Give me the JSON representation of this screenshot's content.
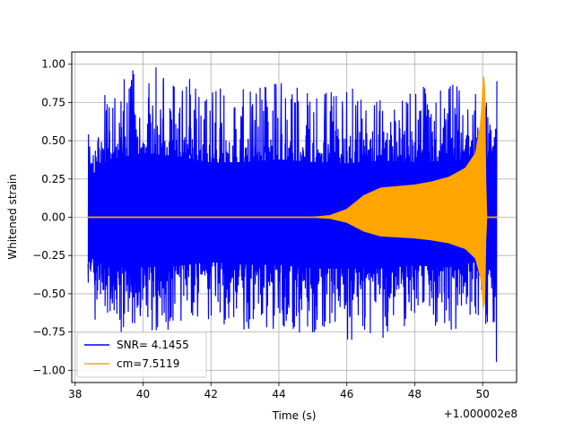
{
  "chart_data": {
    "type": "line",
    "xlabel": "Time (s)",
    "ylabel": "Whitened strain",
    "x_offset_label": "+1.000002e8",
    "xlim": [
      37.9,
      51.0
    ],
    "ylim": [
      -1.08,
      1.08
    ],
    "x_ticks": [
      38,
      40,
      42,
      44,
      46,
      48,
      50
    ],
    "x_tick_labels": [
      "38",
      "40",
      "42",
      "44",
      "46",
      "48",
      "50"
    ],
    "y_ticks": [
      -1.0,
      -0.75,
      -0.5,
      -0.25,
      0.0,
      0.25,
      0.5,
      0.75,
      1.0
    ],
    "y_tick_labels": [
      "−1.00",
      "−0.75",
      "−0.50",
      "−0.25",
      "0.00",
      "0.25",
      "0.50",
      "0.75",
      "1.00"
    ],
    "grid": true,
    "legend_placement": "lower-left",
    "series": [
      {
        "name": "SNR= 4.1455",
        "color": "#0000ff",
        "description": "whitened strain noise",
        "x_range": [
          38.38,
          50.42
        ],
        "amplitude_range": [
          -0.97,
          1.0
        ],
        "envelope_x": [
          38.4,
          39.0,
          40.0,
          41.0,
          42.0,
          43.0,
          44.0,
          45.0,
          46.0,
          47.0,
          48.0,
          49.0,
          50.0,
          50.4
        ],
        "envelope_max": [
          0.62,
          0.9,
          1.0,
          0.95,
          0.85,
          0.86,
          0.9,
          0.86,
          0.84,
          0.88,
          0.86,
          0.88,
          0.92,
          0.97
        ],
        "envelope_min": [
          -0.62,
          -0.78,
          -0.78,
          -0.76,
          -0.7,
          -0.74,
          -0.74,
          -0.8,
          -0.8,
          -0.8,
          -0.75,
          -0.78,
          -0.68,
          -0.97
        ]
      },
      {
        "name": "cm=7.5119",
        "color": "#ffa500",
        "description": "chirp template",
        "envelope_x": [
          38.38,
          45.0,
          45.5,
          46.0,
          46.5,
          47.0,
          47.5,
          48.0,
          48.5,
          49.0,
          49.5,
          49.8,
          49.95,
          50.05,
          50.1,
          50.42
        ],
        "envelope_max": [
          0.0,
          0.0,
          0.01,
          0.05,
          0.14,
          0.19,
          0.2,
          0.21,
          0.23,
          0.26,
          0.32,
          0.42,
          0.62,
          1.0,
          0.0,
          0.0
        ]
      }
    ]
  }
}
